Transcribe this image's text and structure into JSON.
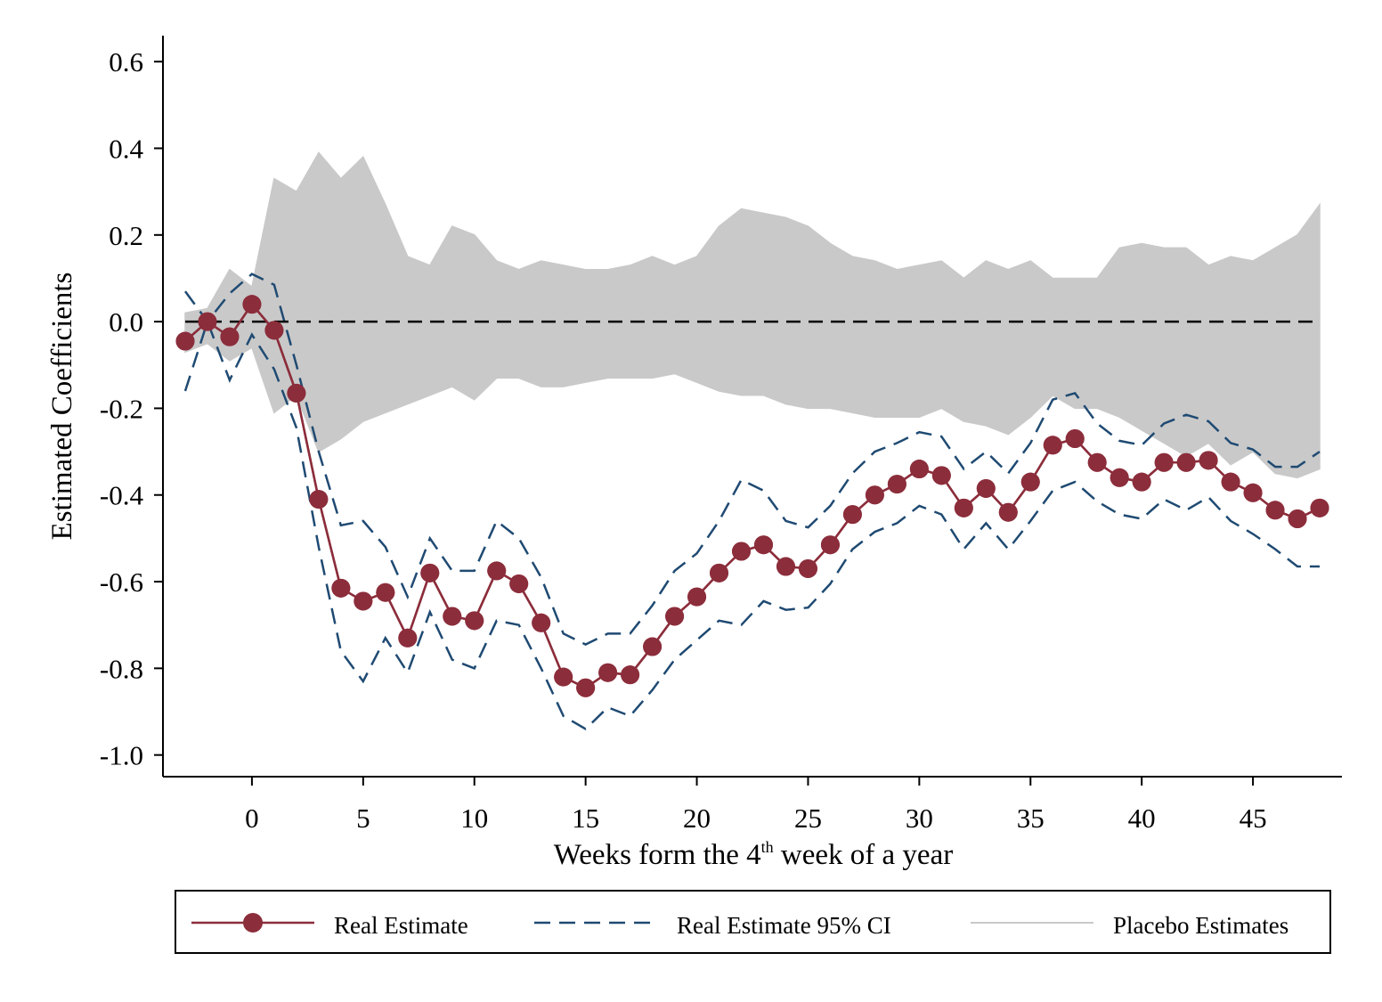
{
  "chart_data": {
    "type": "line",
    "y_label": "Estimated Coefficients",
    "x_label": [
      "Weeks form the 4",
      "th",
      " week of a year"
    ],
    "x": [
      -3,
      -2,
      -1,
      0,
      1,
      2,
      3,
      4,
      5,
      6,
      7,
      8,
      9,
      10,
      11,
      12,
      13,
      14,
      15,
      16,
      17,
      18,
      19,
      20,
      21,
      22,
      23,
      24,
      25,
      26,
      27,
      28,
      29,
      30,
      31,
      32,
      33,
      34,
      35,
      36,
      37,
      38,
      39,
      40,
      41,
      42,
      43,
      44,
      45,
      46,
      47,
      48
    ],
    "xlim": [
      -4,
      49
    ],
    "xticks": [
      0,
      5,
      10,
      15,
      20,
      25,
      30,
      35,
      40,
      45
    ],
    "ylim": [
      -1.05,
      0.66
    ],
    "yticks": [
      {
        "value": -1,
        "label": "-1.0"
      },
      -0.8,
      -0.6,
      -0.4,
      -0.2,
      {
        "value": 0,
        "label": "0.0"
      },
      0.2,
      0.4,
      0.6
    ],
    "reference_line": 0,
    "series": [
      {
        "name": "Real Estimate",
        "color": "#8c2d3b",
        "style": "line-marker",
        "values": [
          -0.045,
          0.0,
          -0.035,
          0.04,
          -0.02,
          -0.165,
          -0.41,
          -0.615,
          -0.645,
          -0.625,
          -0.73,
          -0.58,
          -0.68,
          -0.69,
          -0.575,
          -0.605,
          -0.695,
          -0.82,
          -0.845,
          -0.81,
          -0.815,
          -0.75,
          -0.68,
          -0.635,
          -0.58,
          -0.53,
          -0.515,
          -0.565,
          -0.57,
          -0.515,
          -0.445,
          -0.4,
          -0.375,
          -0.34,
          -0.355,
          -0.43,
          -0.385,
          -0.44,
          -0.37,
          -0.285,
          -0.27,
          -0.325,
          -0.36,
          -0.37,
          -0.325,
          -0.325,
          -0.32,
          -0.37,
          -0.395,
          -0.435,
          -0.455,
          -0.43
        ]
      },
      {
        "name": "Real Estimate 95% CI",
        "color": "#1f4a72",
        "style": "dashed",
        "upper": [
          0.07,
          0.0,
          0.065,
          0.11,
          0.085,
          -0.1,
          -0.3,
          -0.47,
          -0.46,
          -0.52,
          -0.635,
          -0.5,
          -0.575,
          -0.575,
          -0.46,
          -0.5,
          -0.59,
          -0.72,
          -0.745,
          -0.72,
          -0.72,
          -0.655,
          -0.575,
          -0.535,
          -0.46,
          -0.365,
          -0.39,
          -0.46,
          -0.475,
          -0.425,
          -0.35,
          -0.3,
          -0.28,
          -0.255,
          -0.265,
          -0.34,
          -0.3,
          -0.35,
          -0.28,
          -0.18,
          -0.165,
          -0.235,
          -0.275,
          -0.285,
          -0.235,
          -0.215,
          -0.23,
          -0.28,
          -0.295,
          -0.335,
          -0.335,
          -0.3
        ],
        "lower": [
          -0.16,
          0.0,
          -0.135,
          -0.03,
          -0.11,
          -0.245,
          -0.52,
          -0.76,
          -0.83,
          -0.73,
          -0.81,
          -0.67,
          -0.78,
          -0.8,
          -0.69,
          -0.7,
          -0.8,
          -0.91,
          -0.94,
          -0.89,
          -0.91,
          -0.85,
          -0.78,
          -0.735,
          -0.69,
          -0.7,
          -0.645,
          -0.665,
          -0.66,
          -0.605,
          -0.525,
          -0.485,
          -0.465,
          -0.425,
          -0.445,
          -0.525,
          -0.465,
          -0.525,
          -0.46,
          -0.39,
          -0.37,
          -0.415,
          -0.445,
          -0.455,
          -0.41,
          -0.435,
          -0.405,
          -0.46,
          -0.49,
          -0.525,
          -0.565,
          -0.565
        ]
      },
      {
        "name": "Placebo Estimates",
        "color": "#c9c9c9",
        "style": "band",
        "upper": [
          0.02,
          0.03,
          0.12,
          0.08,
          0.33,
          0.3,
          0.39,
          0.33,
          0.38,
          0.27,
          0.15,
          0.13,
          0.22,
          0.2,
          0.14,
          0.12,
          0.14,
          0.13,
          0.12,
          0.12,
          0.13,
          0.15,
          0.13,
          0.15,
          0.22,
          0.26,
          0.25,
          0.24,
          0.22,
          0.18,
          0.15,
          0.14,
          0.12,
          0.13,
          0.14,
          0.1,
          0.14,
          0.12,
          0.14,
          0.1,
          0.1,
          0.1,
          0.17,
          0.18,
          0.17,
          0.17,
          0.13,
          0.15,
          0.14,
          0.17,
          0.2,
          0.27
        ],
        "lower": [
          -0.07,
          -0.05,
          -0.09,
          -0.06,
          -0.21,
          -0.17,
          -0.3,
          -0.27,
          -0.23,
          -0.21,
          -0.19,
          -0.17,
          -0.15,
          -0.18,
          -0.13,
          -0.13,
          -0.15,
          -0.15,
          -0.14,
          -0.13,
          -0.13,
          -0.13,
          -0.12,
          -0.14,
          -0.16,
          -0.17,
          -0.17,
          -0.19,
          -0.2,
          -0.2,
          -0.21,
          -0.22,
          -0.22,
          -0.22,
          -0.2,
          -0.23,
          -0.24,
          -0.26,
          -0.22,
          -0.17,
          -0.2,
          -0.2,
          -0.22,
          -0.25,
          -0.28,
          -0.31,
          -0.28,
          -0.33,
          -0.3,
          -0.35,
          -0.36,
          -0.34
        ]
      }
    ]
  }
}
